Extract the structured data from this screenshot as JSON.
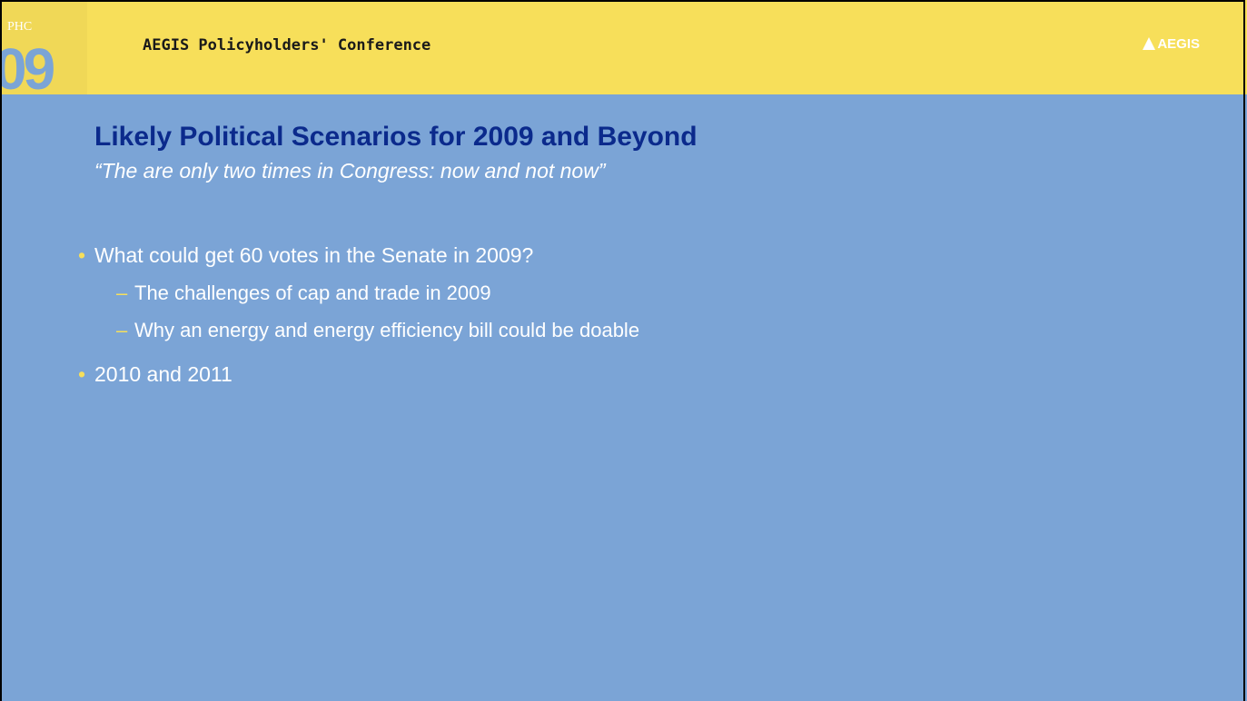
{
  "header": {
    "badge_top": "PHC",
    "badge_number": "09",
    "conference": "AEGIS Policyholders' Conference",
    "logo": "AEGIS"
  },
  "title": "Likely Political Scenarios for 2009 and Beyond",
  "subtitle": "“The are only two times in Congress: now and not now”",
  "bullets": [
    {
      "text": "What could get 60 votes in the Senate in 2009?",
      "sub": [
        "The challenges of cap and trade in 2009",
        "Why an energy and energy efficiency bill could be doable"
      ]
    },
    {
      "text": "2010 and 2011",
      "sub": []
    }
  ]
}
